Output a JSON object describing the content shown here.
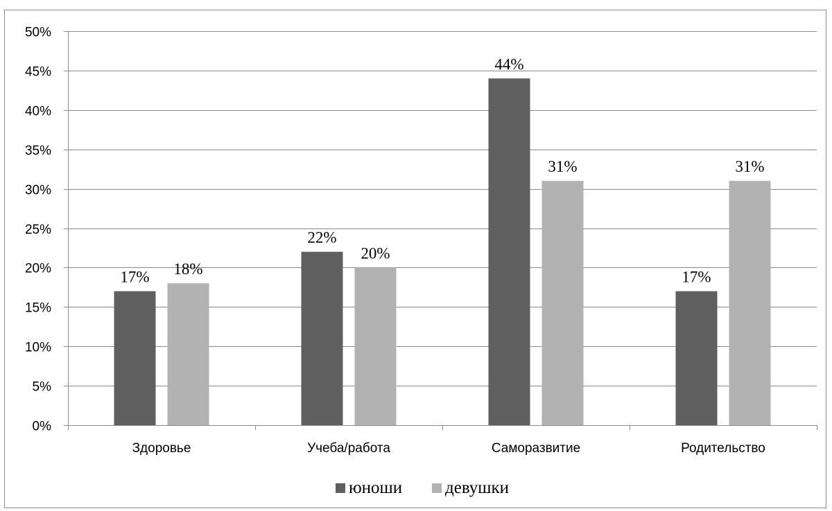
{
  "chart_data": {
    "type": "bar",
    "categories": [
      "Здоровье",
      "Учеба/работа",
      "Саморазвитие",
      "Родительство"
    ],
    "series": [
      {
        "name": "юноши",
        "values": [
          17,
          22,
          44,
          17
        ],
        "labels": [
          "17%",
          "22%",
          "44%",
          "17%"
        ],
        "color": "#5f5f5f"
      },
      {
        "name": "девушки",
        "values": [
          18,
          20,
          31,
          31
        ],
        "labels": [
          "18%",
          "20%",
          "31%",
          "31%"
        ],
        "color": "#b2b2b2"
      }
    ],
    "yticks": [
      "0%",
      "5%",
      "10%",
      "15%",
      "20%",
      "25%",
      "30%",
      "35%",
      "40%",
      "45%",
      "50%"
    ],
    "ylim": [
      0,
      50
    ],
    "grid": true,
    "legend": "bottom",
    "title": "",
    "xlabel": "",
    "ylabel": ""
  }
}
